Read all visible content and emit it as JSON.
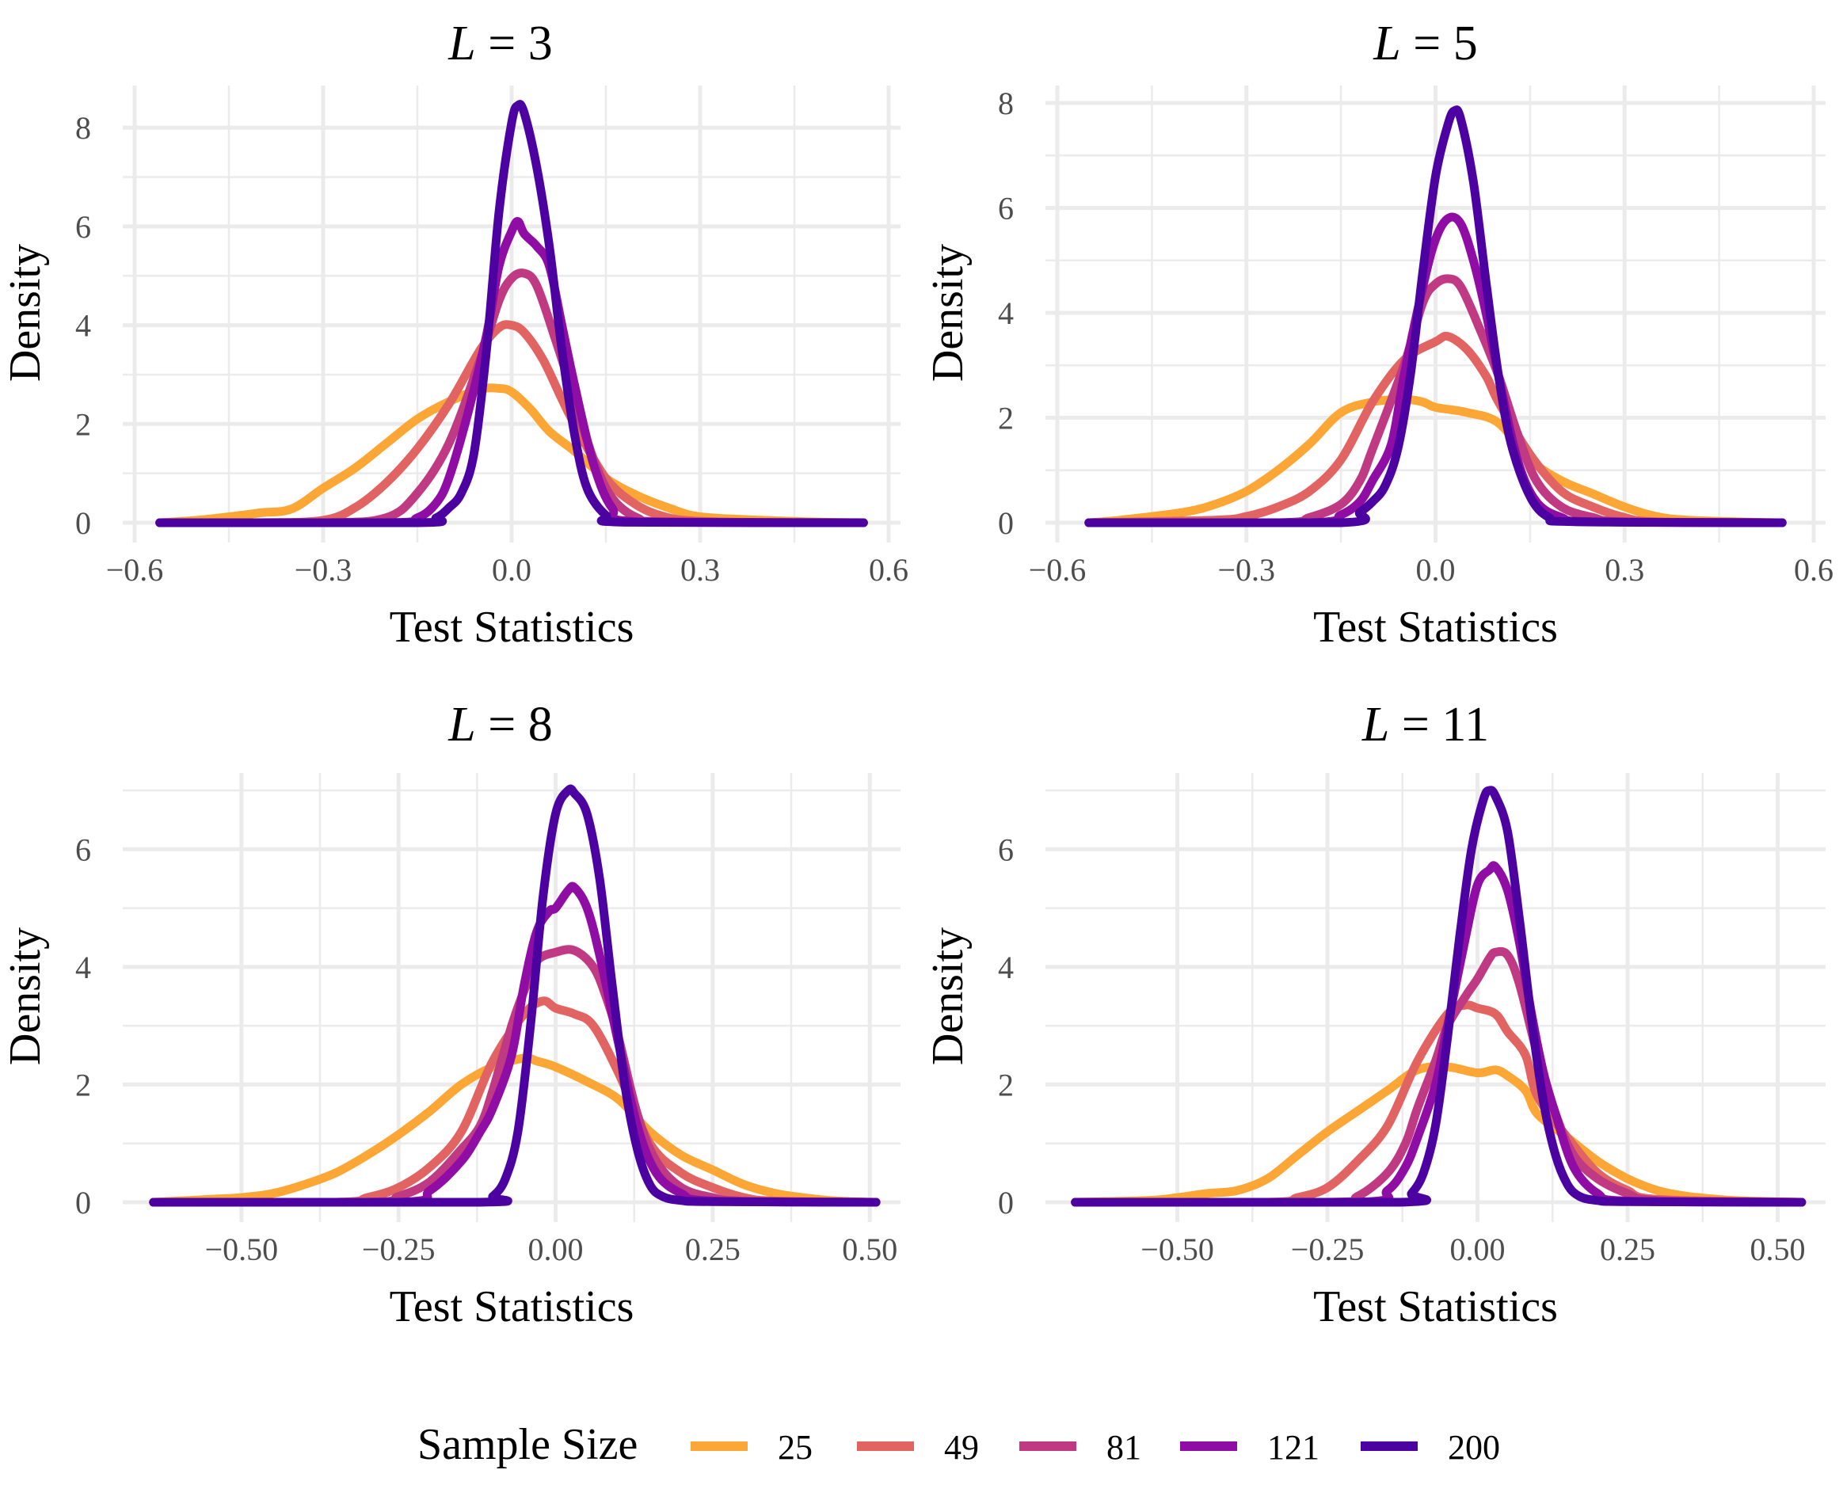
{
  "chart_data": [
    {
      "type": "line",
      "title": "L = 3",
      "title_var": "L",
      "title_rest": " = 3",
      "xlabel": "Test Statistics",
      "ylabel": "Density",
      "xlim": [
        -0.6,
        0.6
      ],
      "ylim": [
        0,
        8.5
      ],
      "xticks": [
        -0.6,
        -0.3,
        0.0,
        0.3,
        0.6
      ],
      "xtick_labels": [
        "−0.6",
        "−0.3",
        "0.0",
        "0.3",
        "0.6"
      ],
      "yticks": [
        0,
        2,
        4,
        6,
        8
      ],
      "ytick_labels": [
        "0",
        "2",
        "4",
        "6",
        "8"
      ],
      "grid": true,
      "series": [
        {
          "name": "25",
          "x": [
            -0.56,
            -0.5,
            -0.45,
            -0.4,
            -0.35,
            -0.3,
            -0.25,
            -0.2,
            -0.15,
            -0.1,
            -0.05,
            -0.02,
            0.0,
            0.03,
            0.06,
            0.1,
            0.15,
            0.2,
            0.25,
            0.3,
            0.4,
            0.5,
            0.56
          ],
          "y": [
            0,
            0.05,
            0.12,
            0.2,
            0.28,
            0.7,
            1.1,
            1.6,
            2.1,
            2.45,
            2.7,
            2.72,
            2.65,
            2.3,
            1.85,
            1.45,
            0.9,
            0.55,
            0.3,
            0.12,
            0.05,
            0.01,
            0
          ]
        },
        {
          "name": "49",
          "x": [
            -0.56,
            -0.4,
            -0.3,
            -0.25,
            -0.2,
            -0.15,
            -0.1,
            -0.05,
            -0.02,
            0.0,
            0.02,
            0.05,
            0.08,
            0.1,
            0.15,
            0.2,
            0.25,
            0.3,
            0.4,
            0.56
          ],
          "y": [
            0,
            0,
            0.05,
            0.3,
            0.8,
            1.5,
            2.4,
            3.5,
            3.95,
            4.0,
            3.85,
            3.3,
            2.5,
            2.0,
            0.9,
            0.35,
            0.1,
            0.03,
            0,
            0
          ]
        },
        {
          "name": "81",
          "x": [
            -0.56,
            -0.3,
            -0.2,
            -0.15,
            -0.1,
            -0.05,
            -0.02,
            0.0,
            0.02,
            0.04,
            0.07,
            0.1,
            0.13,
            0.16,
            0.2,
            0.25,
            0.56
          ],
          "y": [
            0,
            0,
            0.1,
            0.6,
            1.6,
            3.3,
            4.5,
            4.95,
            5.05,
            4.8,
            3.7,
            2.5,
            1.3,
            0.5,
            0.1,
            0.02,
            0
          ]
        },
        {
          "name": "121",
          "x": [
            -0.56,
            -0.2,
            -0.15,
            -0.12,
            -0.1,
            -0.07,
            -0.04,
            -0.02,
            0.0,
            0.01,
            0.02,
            0.04,
            0.06,
            0.08,
            0.1,
            0.13,
            0.16,
            0.2,
            0.56
          ],
          "y": [
            0,
            0,
            0.1,
            0.4,
            0.9,
            2.2,
            3.8,
            5.2,
            5.9,
            6.1,
            5.85,
            5.6,
            5.2,
            4.0,
            2.8,
            1.2,
            0.3,
            0.02,
            0
          ]
        },
        {
          "name": "200",
          "x": [
            -0.56,
            -0.15,
            -0.12,
            -0.1,
            -0.08,
            -0.06,
            -0.04,
            -0.02,
            0.0,
            0.01,
            0.02,
            0.04,
            0.06,
            0.08,
            0.1,
            0.12,
            0.15,
            0.18,
            0.56
          ],
          "y": [
            0,
            0,
            0.1,
            0.3,
            0.6,
            1.4,
            3.5,
            6.3,
            8.1,
            8.45,
            8.3,
            7.2,
            5.6,
            3.5,
            1.8,
            0.7,
            0.15,
            0.01,
            0
          ]
        }
      ]
    },
    {
      "type": "line",
      "title": "L = 5",
      "title_var": "L",
      "title_rest": " = 5",
      "xlabel": "Test Statistics",
      "ylabel": "Density",
      "xlim": [
        -0.6,
        0.6
      ],
      "ylim": [
        0,
        8.0
      ],
      "xticks": [
        -0.6,
        -0.3,
        0.0,
        0.3,
        0.6
      ],
      "xtick_labels": [
        "−0.6",
        "−0.3",
        "0.0",
        "0.3",
        "0.6"
      ],
      "yticks": [
        0,
        2,
        4,
        6,
        8
      ],
      "ytick_labels": [
        "0",
        "2",
        "4",
        "6",
        "8"
      ],
      "grid": true,
      "series": [
        {
          "name": "25",
          "x": [
            -0.55,
            -0.5,
            -0.4,
            -0.35,
            -0.3,
            -0.25,
            -0.2,
            -0.15,
            -0.1,
            -0.05,
            -0.02,
            0.0,
            0.05,
            0.1,
            0.15,
            0.2,
            0.25,
            0.3,
            0.35,
            0.4,
            0.5,
            0.55
          ],
          "y": [
            0,
            0.05,
            0.2,
            0.35,
            0.6,
            1.0,
            1.5,
            2.1,
            2.3,
            2.35,
            2.3,
            2.2,
            2.1,
            1.9,
            1.2,
            0.8,
            0.55,
            0.3,
            0.12,
            0.05,
            0.01,
            0
          ]
        },
        {
          "name": "49",
          "x": [
            -0.55,
            -0.35,
            -0.3,
            -0.25,
            -0.2,
            -0.15,
            -0.1,
            -0.05,
            0.0,
            0.02,
            0.05,
            0.08,
            0.1,
            0.15,
            0.2,
            0.25,
            0.3,
            0.35,
            0.55
          ],
          "y": [
            0,
            0.05,
            0.12,
            0.3,
            0.6,
            1.2,
            2.3,
            3.1,
            3.45,
            3.55,
            3.3,
            2.8,
            2.3,
            1.3,
            0.6,
            0.3,
            0.1,
            0.02,
            0
          ]
        },
        {
          "name": "81",
          "x": [
            -0.55,
            -0.25,
            -0.2,
            -0.15,
            -0.12,
            -0.1,
            -0.05,
            -0.02,
            0.0,
            0.02,
            0.04,
            0.07,
            0.1,
            0.13,
            0.16,
            0.2,
            0.25,
            0.3,
            0.55
          ],
          "y": [
            0,
            0,
            0.1,
            0.35,
            0.8,
            1.4,
            3.0,
            4.2,
            4.55,
            4.65,
            4.5,
            3.7,
            2.8,
            1.7,
            0.8,
            0.3,
            0.1,
            0.02,
            0
          ]
        },
        {
          "name": "121",
          "x": [
            -0.55,
            -0.2,
            -0.15,
            -0.12,
            -0.1,
            -0.07,
            -0.05,
            -0.02,
            0.0,
            0.02,
            0.04,
            0.06,
            0.08,
            0.1,
            0.13,
            0.16,
            0.2,
            0.25,
            0.55
          ],
          "y": [
            0,
            0,
            0.15,
            0.4,
            0.8,
            1.5,
            2.8,
            4.5,
            5.4,
            5.8,
            5.7,
            5.0,
            4.0,
            2.8,
            1.2,
            0.4,
            0.1,
            0.02,
            0
          ]
        },
        {
          "name": "200",
          "x": [
            -0.55,
            -0.15,
            -0.12,
            -0.1,
            -0.08,
            -0.06,
            -0.04,
            -0.02,
            0.0,
            0.02,
            0.03,
            0.04,
            0.06,
            0.08,
            0.1,
            0.12,
            0.15,
            0.18,
            0.22,
            0.55
          ],
          "y": [
            0,
            0,
            0.2,
            0.4,
            0.7,
            1.4,
            2.8,
            4.8,
            6.6,
            7.6,
            7.85,
            7.7,
            6.5,
            4.6,
            2.8,
            1.5,
            0.5,
            0.1,
            0.02,
            0
          ]
        }
      ]
    },
    {
      "type": "line",
      "title": "L = 8",
      "title_var": "L",
      "title_rest": " = 8",
      "xlabel": "Test Statistics",
      "ylabel": "Density",
      "xlim": [
        -0.67,
        0.53
      ],
      "ylim": [
        0,
        7.0
      ],
      "xticks": [
        -0.5,
        -0.25,
        0.0,
        0.25,
        0.5
      ],
      "xtick_labels": [
        "−0.50",
        "−0.25",
        "0.00",
        "0.25",
        "0.50"
      ],
      "yticks": [
        0,
        2,
        4,
        6
      ],
      "ytick_labels": [
        "0",
        "2",
        "4",
        "6"
      ],
      "grid": true,
      "series": [
        {
          "name": "25",
          "x": [
            -0.64,
            -0.55,
            -0.5,
            -0.45,
            -0.4,
            -0.35,
            -0.3,
            -0.25,
            -0.2,
            -0.15,
            -0.1,
            -0.05,
            -0.03,
            0.0,
            0.05,
            0.1,
            0.15,
            0.2,
            0.25,
            0.3,
            0.35,
            0.4,
            0.45,
            0.51
          ],
          "y": [
            0,
            0.05,
            0.08,
            0.15,
            0.3,
            0.5,
            0.8,
            1.15,
            1.55,
            2.0,
            2.3,
            2.45,
            2.4,
            2.3,
            2.05,
            1.75,
            1.2,
            0.8,
            0.55,
            0.3,
            0.15,
            0.07,
            0.02,
            0
          ]
        },
        {
          "name": "49",
          "x": [
            -0.64,
            -0.35,
            -0.3,
            -0.25,
            -0.2,
            -0.15,
            -0.1,
            -0.05,
            -0.02,
            0.0,
            0.03,
            0.06,
            0.1,
            0.15,
            0.2,
            0.25,
            0.3,
            0.35,
            0.51
          ],
          "y": [
            0,
            0,
            0.08,
            0.25,
            0.6,
            1.2,
            2.4,
            3.2,
            3.42,
            3.3,
            3.2,
            3.0,
            2.2,
            1.0,
            0.5,
            0.25,
            0.08,
            0.02,
            0
          ]
        },
        {
          "name": "81",
          "x": [
            -0.64,
            -0.3,
            -0.25,
            -0.2,
            -0.15,
            -0.12,
            -0.1,
            -0.07,
            -0.05,
            -0.03,
            0.0,
            0.03,
            0.06,
            0.08,
            0.1,
            0.13,
            0.16,
            0.2,
            0.25,
            0.3,
            0.51
          ],
          "y": [
            0,
            0,
            0.1,
            0.35,
            0.9,
            1.3,
            1.9,
            3.0,
            3.6,
            4.1,
            4.25,
            4.28,
            4.0,
            3.5,
            2.8,
            1.5,
            0.7,
            0.25,
            0.08,
            0.02,
            0
          ]
        },
        {
          "name": "121",
          "x": [
            -0.64,
            -0.25,
            -0.2,
            -0.15,
            -0.12,
            -0.1,
            -0.07,
            -0.05,
            -0.03,
            -0.01,
            0.0,
            0.02,
            0.03,
            0.05,
            0.07,
            0.1,
            0.13,
            0.16,
            0.2,
            0.25,
            0.51
          ],
          "y": [
            0,
            0,
            0.2,
            0.7,
            1.2,
            1.6,
            2.5,
            3.7,
            4.6,
            4.95,
            5.0,
            5.3,
            5.35,
            5.0,
            4.2,
            2.7,
            1.3,
            0.5,
            0.15,
            0.02,
            0
          ]
        },
        {
          "name": "200",
          "x": [
            -0.64,
            -0.12,
            -0.1,
            -0.08,
            -0.06,
            -0.04,
            -0.02,
            0.0,
            0.02,
            0.03,
            0.05,
            0.07,
            0.09,
            0.11,
            0.13,
            0.15,
            0.17,
            0.2,
            0.25,
            0.51
          ],
          "y": [
            0,
            0,
            0.1,
            0.4,
            1.2,
            3.0,
            5.2,
            6.6,
            7.0,
            6.95,
            6.6,
            5.5,
            3.7,
            2.0,
            0.9,
            0.3,
            0.1,
            0.03,
            0.01,
            0
          ]
        }
      ]
    },
    {
      "type": "line",
      "title": "L = 11",
      "title_var": "L",
      "title_rest": " = 11",
      "xlabel": "Test Statistics",
      "ylabel": "Density",
      "xlim": [
        -0.7,
        0.56
      ],
      "ylim": [
        0,
        7.0
      ],
      "xticks": [
        -0.5,
        -0.25,
        0.0,
        0.25,
        0.5
      ],
      "xtick_labels": [
        "−0.50",
        "−0.25",
        "0.00",
        "0.25",
        "0.50"
      ],
      "yticks": [
        0,
        2,
        4,
        6
      ],
      "ytick_labels": [
        "0",
        "2",
        "4",
        "6"
      ],
      "grid": true,
      "series": [
        {
          "name": "25",
          "x": [
            -0.67,
            -0.55,
            -0.5,
            -0.45,
            -0.4,
            -0.35,
            -0.3,
            -0.25,
            -0.2,
            -0.15,
            -0.1,
            -0.05,
            0.0,
            0.03,
            0.05,
            0.08,
            0.1,
            0.15,
            0.2,
            0.25,
            0.3,
            0.35,
            0.4,
            0.45,
            0.54
          ],
          "y": [
            0,
            0.03,
            0.08,
            0.15,
            0.2,
            0.4,
            0.8,
            1.2,
            1.55,
            1.9,
            2.25,
            2.3,
            2.2,
            2.25,
            2.15,
            1.9,
            1.5,
            1.1,
            0.7,
            0.4,
            0.2,
            0.1,
            0.05,
            0.02,
            0
          ]
        },
        {
          "name": "49",
          "x": [
            -0.67,
            -0.35,
            -0.3,
            -0.25,
            -0.2,
            -0.15,
            -0.1,
            -0.05,
            -0.02,
            0.0,
            0.03,
            0.05,
            0.08,
            0.1,
            0.15,
            0.2,
            0.25,
            0.3,
            0.54
          ],
          "y": [
            0,
            0,
            0.08,
            0.25,
            0.7,
            1.3,
            2.4,
            3.2,
            3.35,
            3.3,
            3.2,
            2.9,
            2.5,
            1.8,
            1.1,
            0.5,
            0.2,
            0.05,
            0
          ]
        },
        {
          "name": "81",
          "x": [
            -0.67,
            -0.25,
            -0.2,
            -0.15,
            -0.12,
            -0.1,
            -0.07,
            -0.05,
            -0.02,
            0.0,
            0.02,
            0.03,
            0.05,
            0.07,
            0.1,
            0.13,
            0.16,
            0.2,
            0.25,
            0.3,
            0.54
          ],
          "y": [
            0,
            0,
            0.1,
            0.5,
            1.0,
            1.6,
            2.4,
            3.0,
            3.5,
            3.8,
            4.15,
            4.25,
            4.2,
            3.7,
            2.5,
            1.5,
            0.8,
            0.4,
            0.15,
            0.03,
            0
          ]
        },
        {
          "name": "121",
          "x": [
            -0.67,
            -0.2,
            -0.15,
            -0.12,
            -0.1,
            -0.07,
            -0.05,
            -0.02,
            0.0,
            0.02,
            0.03,
            0.05,
            0.07,
            0.09,
            0.11,
            0.13,
            0.16,
            0.2,
            0.25,
            0.54
          ],
          "y": [
            0,
            0,
            0.2,
            0.6,
            1.1,
            2.0,
            3.0,
            4.5,
            5.4,
            5.65,
            5.7,
            5.3,
            4.4,
            3.2,
            2.2,
            1.5,
            0.6,
            0.15,
            0.02,
            0
          ]
        },
        {
          "name": "200",
          "x": [
            -0.67,
            -0.13,
            -0.11,
            -0.09,
            -0.07,
            -0.05,
            -0.03,
            -0.01,
            0.01,
            0.02,
            0.03,
            0.05,
            0.07,
            0.09,
            0.11,
            0.13,
            0.15,
            0.17,
            0.2,
            0.25,
            0.54
          ],
          "y": [
            0,
            0,
            0.15,
            0.5,
            1.3,
            2.8,
            4.5,
            6.0,
            6.85,
            7.0,
            6.9,
            6.3,
            4.8,
            3.1,
            1.7,
            0.8,
            0.3,
            0.1,
            0.03,
            0.01,
            0
          ]
        }
      ]
    }
  ],
  "legend": {
    "title": "Sample Size",
    "position": "bottom",
    "items": [
      {
        "label": "25",
        "color": "#FCA636"
      },
      {
        "label": "49",
        "color": "#E16462"
      },
      {
        "label": "81",
        "color": "#C03A83"
      },
      {
        "label": "121",
        "color": "#8F0DA4"
      },
      {
        "label": "200",
        "color": "#4C02A1"
      }
    ]
  }
}
